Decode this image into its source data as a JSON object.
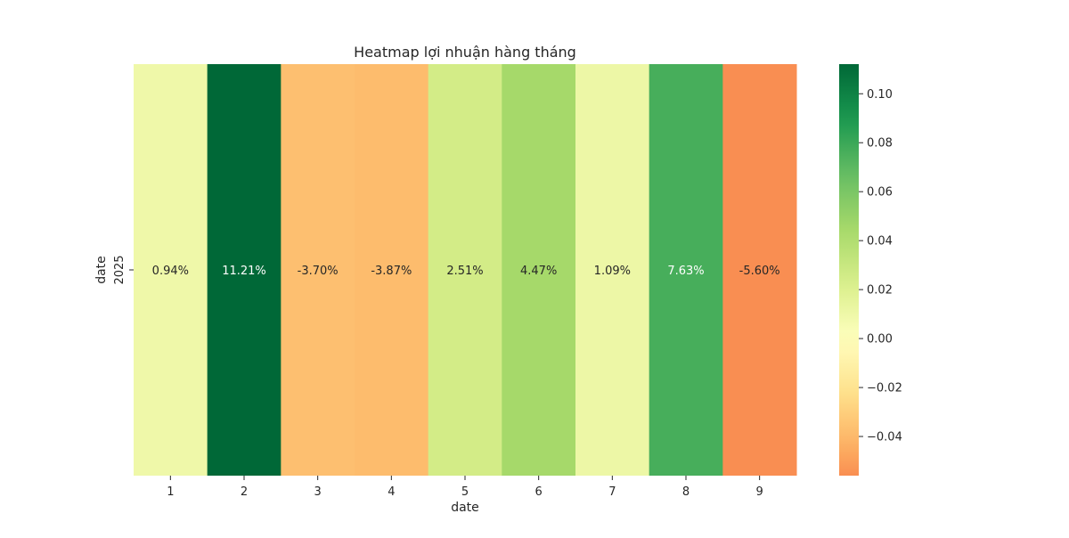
{
  "chart_data": {
    "type": "heatmap",
    "title": "Heatmap lợi nhuận hàng tháng",
    "xlabel": "date",
    "ylabel": "date",
    "rows": [
      "2025"
    ],
    "columns": [
      "1",
      "2",
      "3",
      "4",
      "5",
      "6",
      "7",
      "8",
      "9"
    ],
    "values": [
      [
        0.0094,
        0.1121,
        -0.037,
        -0.0387,
        0.0251,
        0.0447,
        0.0109,
        0.0763,
        -0.056
      ]
    ],
    "cell_labels": [
      [
        "0.94%",
        "11.21%",
        "-3.70%",
        "-3.87%",
        "2.51%",
        "4.47%",
        "1.09%",
        "7.63%",
        "-5.60%"
      ]
    ],
    "colormap": "RdYlGn",
    "center": 0,
    "color_range": [
      -0.056,
      0.1121
    ],
    "colorbar_ticks": [
      0.1,
      0.08,
      0.06,
      0.04,
      0.02,
      0.0,
      -0.02,
      -0.04
    ],
    "colorbar_tick_labels": [
      "0.10",
      "0.08",
      "0.06",
      "0.04",
      "0.02",
      "0.00",
      "−0.02",
      "−0.04"
    ],
    "colorbar_colors": {
      "top": "#006837",
      "mid": "#ffffbf",
      "bottom": "#f98e52"
    }
  }
}
